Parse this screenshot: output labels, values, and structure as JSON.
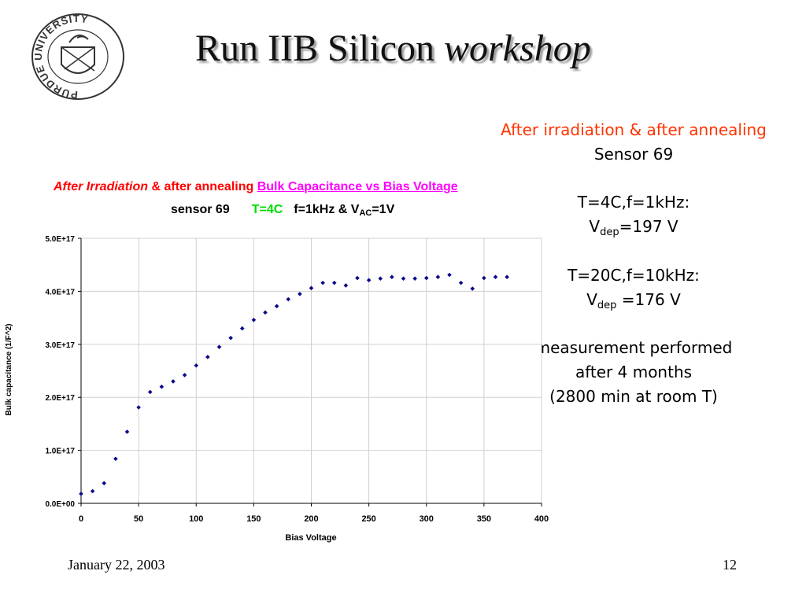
{
  "slide": {
    "title_main": "Run IIB Silicon",
    "title_italic": "workshop",
    "logo_text": "PURDUE UNIVERSITY",
    "footer_date": "January 22, 2003",
    "page_number": "12"
  },
  "side_notes": {
    "line1": "After irradiation & after annealing",
    "line2": "Sensor 69",
    "cond1": "T=4C,f=1kHz:",
    "vdep1_v": "V",
    "vdep1_sub": "dep",
    "vdep1_val": "=197 V",
    "cond2": "T=20C,f=10kHz:",
    "vdep2_v": "V",
    "vdep2_sub": "dep",
    "vdep2_val": " =176 V",
    "meas1": "measurement performed",
    "meas2": "after 4 months",
    "meas3": "(2800 min at room T)"
  },
  "chart_header": {
    "part1": "After Irradiation",
    "part2": " & after annealing ",
    "part3": "Bulk Capacitance vs Bias Voltage",
    "sensor": "sensor 69",
    "temp": "T=4C",
    "freq": "f=1kHz & V",
    "freq_sub": "AC",
    "freq_val": "=1V"
  },
  "chart_data": {
    "type": "scatter",
    "xlabel": "Bias Voltage",
    "ylabel": "Bulk capacitance (1/F^2)",
    "xlim": [
      0,
      400
    ],
    "ylim": [
      0,
      5e+17
    ],
    "grid": true,
    "x_ticks": [
      "0",
      "50",
      "100",
      "150",
      "200",
      "250",
      "300",
      "350",
      "400"
    ],
    "y_ticks": [
      "0.0E+00",
      "1.0E+17",
      "2.0E+17",
      "3.0E+17",
      "4.0E+17",
      "5.0E+17"
    ],
    "marker_color": "#0a0a8a",
    "series": [
      {
        "x": [
          0,
          10,
          20,
          30,
          40,
          50,
          60,
          70,
          80,
          90,
          100,
          110,
          120,
          130,
          140,
          150,
          160,
          170,
          180,
          190,
          200,
          210,
          220,
          230,
          240,
          250,
          260,
          270,
          280,
          290,
          300,
          310,
          320,
          330,
          340,
          350,
          360,
          370
        ],
        "y": [
          1.8e+16,
          2.3e+16,
          3.8e+16,
          8.4e+16,
          1.35e+17,
          1.81e+17,
          2.1e+17,
          2.2e+17,
          2.3e+17,
          2.42e+17,
          2.6e+17,
          2.76e+17,
          2.95e+17,
          3.12e+17,
          3.3e+17,
          3.46e+17,
          3.6e+17,
          3.72e+17,
          3.85e+17,
          3.95e+17,
          4.06e+17,
          4.16e+17,
          4.16e+17,
          4.11e+17,
          4.25e+17,
          4.21e+17,
          4.24e+17,
          4.27e+17,
          4.24e+17,
          4.24e+17,
          4.25e+17,
          4.27e+17,
          4.31e+17,
          4.16e+17,
          4.05e+17,
          4.25e+17,
          4.27e+17,
          4.27e+17
        ]
      }
    ]
  }
}
